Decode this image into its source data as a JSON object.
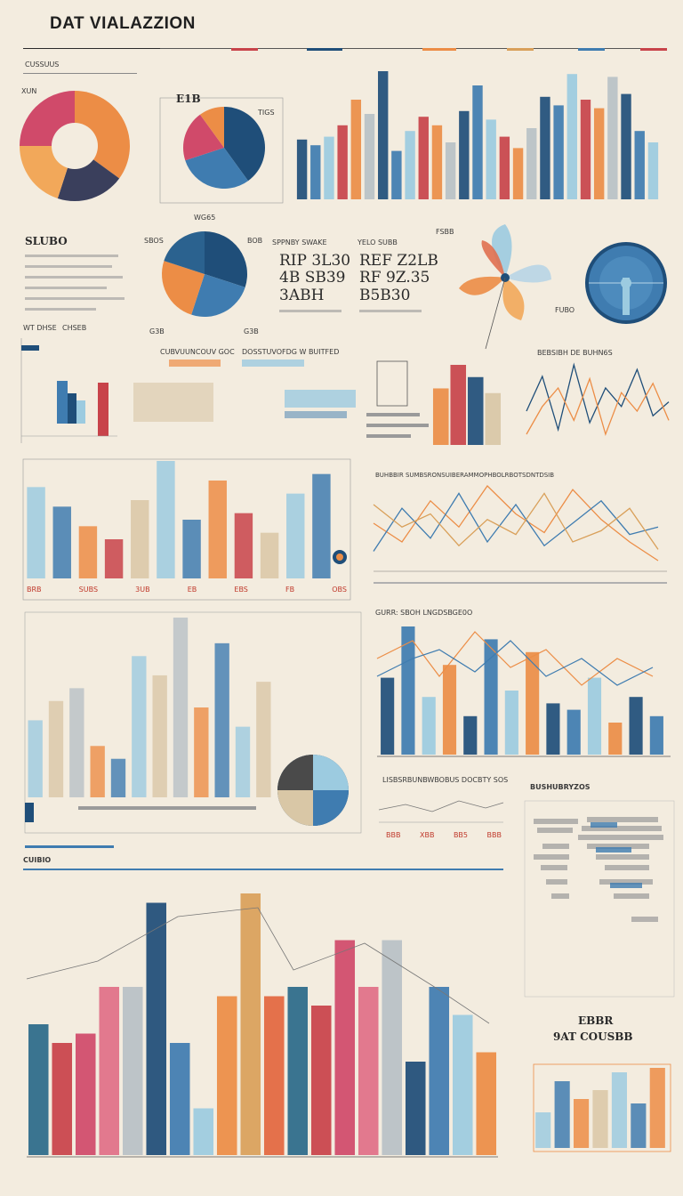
{
  "header": {
    "title": "DAT VIALAZZION",
    "subtitle_left": "CUSSUUS"
  },
  "colors": {
    "background": "#f3ecdf",
    "navy": "#1f4e79",
    "blue": "#3f7cb0",
    "lightblue": "#9ccbe0",
    "orange": "#ec8d46",
    "red": "#c8434a",
    "pink": "#d04a6a",
    "sand": "#d9c7a6",
    "grey": "#b8c1c6"
  },
  "labels": {
    "donut1_corner": "XUN",
    "pie2_tag": "E1B",
    "pie2_side": "TIGS",
    "pie3_top": "WG65",
    "pie3_left": "SBOS",
    "pie3_right": "BOB",
    "stats_left_header": "SPPNBY SWAKE",
    "stats_right_header": "YELO SUBB",
    "stat_a1": "RIP 3L30",
    "stat_a2": "4B SB39",
    "stat_a3": "3ABH",
    "stat_b1": "REF Z2LB",
    "stat_b2": "RF 9Z.35",
    "stat_b3": "B5B30",
    "left_block_title": "SLUBO",
    "row_title_a": "WT DHSE",
    "row_title_b": "CHSEB",
    "mid_caption_a": "CUBVUUNCOUV GOC",
    "mid_caption_b": "DOSSTUVOFDG W BUITFED",
    "small_label_a": "G3B",
    "small_label_b": "G3B",
    "fan_label": "FSBB",
    "gauge_label": "FUBO",
    "right_panel_title": "BEBSIBH DE BUHN6S",
    "line_chart_title": "BUHBBIR SUMBSRONSUIBERAMMOPHBOLRBOTSDNTDSIB",
    "combo_chart_title": "GURR: SBOH LNGDSBGE0O",
    "combo_caption": "LISBSRBUNBWBOBUS DOCBTY SOS",
    "bar_row_labels": [
      "BRB",
      "SUBS",
      "3UB",
      "EB",
      "EBS",
      "OBS"
    ],
    "bar_row_label_e": "FB",
    "big_section_title": "CUIBIO",
    "map_title": "BUSHUBRYZOS",
    "map_stat_a": "EBBR",
    "map_stat_b": "9AT COUSBB",
    "ticks_small": [
      "BBB",
      "XBB",
      "BB5",
      "BBB"
    ]
  },
  "chart_data": [
    {
      "type": "pie",
      "name": "donut-top-left",
      "values": [
        35,
        20,
        20,
        25
      ],
      "colors": [
        "#ec8d46",
        "#3a3f5c",
        "#f2a85a",
        "#d04a6a"
      ]
    },
    {
      "type": "pie",
      "name": "pie-top-mid",
      "values": [
        40,
        30,
        20,
        10
      ],
      "colors": [
        "#1f4e79",
        "#3f7cb0",
        "#d04a6a",
        "#ec8d46"
      ]
    },
    {
      "type": "bar",
      "name": "bars-top-right",
      "values": [
        42,
        38,
        44,
        52,
        70,
        60,
        90,
        34,
        48,
        58,
        52,
        40,
        62,
        80,
        56,
        44,
        36,
        50,
        72,
        66,
        88,
        70,
        64,
        86,
        74,
        48,
        40
      ],
      "colors": [
        "#1f4e79",
        "#3f7cb0",
        "#9ccbe0",
        "#c8434a",
        "#ec8d46",
        "#b8c1c6"
      ]
    },
    {
      "type": "pie",
      "name": "pie-mid-left",
      "values": [
        30,
        25,
        25,
        20
      ],
      "colors": [
        "#1f4e79",
        "#3f7cb0",
        "#ec8d46",
        "#2b628f"
      ]
    },
    {
      "type": "bar",
      "name": "bars-stacked-center",
      "values": [
        60,
        85,
        72,
        55
      ],
      "colors": [
        "#ec8d46",
        "#c8434a",
        "#1f4e79",
        "#d9c7a6"
      ]
    },
    {
      "type": "line",
      "name": "line-wave-right",
      "series": [
        {
          "values": [
            40,
            55,
            32,
            60,
            35,
            50,
            42,
            58,
            38,
            44
          ]
        },
        {
          "values": [
            30,
            42,
            50,
            36,
            54,
            30,
            48,
            40,
            52,
            36
          ]
        }
      ],
      "colors": [
        "#1f4e79",
        "#ec8d46"
      ]
    },
    {
      "type": "bar",
      "name": "bars-mid-left",
      "values": [
        70,
        55,
        40,
        30,
        60,
        90,
        45,
        75,
        50,
        35,
        65,
        80
      ],
      "colors": [
        "#9ccbe0",
        "#3f7cb0",
        "#ec8d46",
        "#c8434a",
        "#d9c7a6"
      ]
    },
    {
      "type": "line",
      "name": "line-multi-right",
      "series": [
        {
          "values": [
            50,
            40,
            62,
            48,
            70,
            55,
            45,
            68,
            52,
            40,
            30
          ]
        },
        {
          "values": [
            35,
            58,
            42,
            66,
            40,
            60,
            38,
            50,
            62,
            44,
            48
          ]
        },
        {
          "values": [
            60,
            48,
            55,
            38,
            52,
            44,
            66,
            40,
            46,
            58,
            36
          ]
        }
      ],
      "colors": [
        "#ec8d46",
        "#3f7cb0",
        "#d9a05a"
      ]
    },
    {
      "type": "bar",
      "name": "bars-lower-left",
      "values": [
        60,
        75,
        85,
        40,
        30,
        110,
        95,
        140,
        70,
        120,
        55,
        90
      ],
      "colors": [
        "#9ccbe0",
        "#d9c7a6",
        "#b8c1c6",
        "#ec8d46",
        "#3f7cb0"
      ]
    },
    {
      "type": "bar",
      "name": "bars-lower-right",
      "values": [
        60,
        100,
        45,
        70,
        30,
        90,
        50,
        80,
        40,
        35,
        60,
        25,
        45,
        30
      ],
      "colors": [
        "#1f4e79",
        "#3f7cb0",
        "#9ccbe0",
        "#ec8d46"
      ]
    },
    {
      "type": "bar",
      "name": "bars-bottom-big",
      "values": [
        140,
        120,
        130,
        180,
        180,
        270,
        120,
        50,
        170,
        280,
        170,
        180,
        160,
        230,
        180,
        230,
        100,
        180,
        150,
        110
      ],
      "colors": [
        "#2b6a8a",
        "#c8434a",
        "#d04a6a",
        "#e07088",
        "#b8c1c6",
        "#1f4e79",
        "#3f7cb0",
        "#9ccbe0",
        "#ec8d46",
        "#d9a05a",
        "#e2673f"
      ]
    },
    {
      "type": "bar",
      "name": "bars-bottom-right",
      "values": [
        40,
        75,
        55,
        65,
        85,
        50,
        90
      ],
      "colors": [
        "#9ccbe0",
        "#3f7cb0",
        "#ec8d46",
        "#d9c7a6"
      ]
    }
  ]
}
